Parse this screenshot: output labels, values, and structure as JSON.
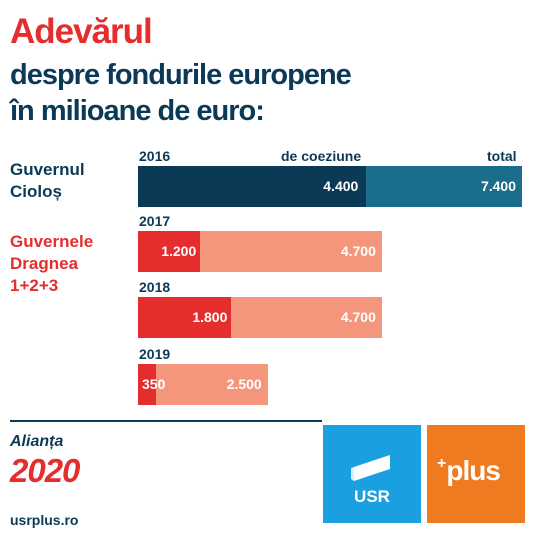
{
  "header": {
    "title": "Adevărul",
    "subtitle_line1": "despre fondurile europene",
    "subtitle_line2": "în milioane de euro:"
  },
  "groups": {
    "ciolos": "Guvernul\nCioloș",
    "dragnea": "Guvernele\nDragnea\n1+2+3"
  },
  "legend": {
    "coeziune": "de coeziune",
    "total": "total"
  },
  "colors": {
    "ciolos_coeziune": "#0b3a57",
    "ciolos_total": "#1b6d8c",
    "dragnea_coeziune": "#e52d2d",
    "dragnea_total": "#f4967b"
  },
  "chart_data": {
    "type": "bar",
    "orientation": "horizontal",
    "title": "Adevărul despre fondurile europene în milioane de euro:",
    "categories": [
      "2016",
      "2017",
      "2018",
      "2019"
    ],
    "series": [
      {
        "name": "de coeziune",
        "values": [
          4400,
          1200,
          1800,
          350
        ]
      },
      {
        "name": "total",
        "values": [
          7400,
          4700,
          4700,
          2500
        ]
      }
    ],
    "value_labels": {
      "coeziune": [
        "4.400",
        "1.200",
        "1.800",
        "350"
      ],
      "total": [
        "7.400",
        "4.700",
        "4.700",
        "2.500"
      ]
    },
    "xlim": [
      0,
      7400
    ],
    "grid": false
  },
  "footer": {
    "alianta": "Alianța",
    "year": "2020",
    "site": "usrplus.ro",
    "logo_usr_text": "USR",
    "logo_plus_text": "plus",
    "logo_plus_sup": "+",
    "logo_usr_icon": "usr-flag-icon"
  }
}
